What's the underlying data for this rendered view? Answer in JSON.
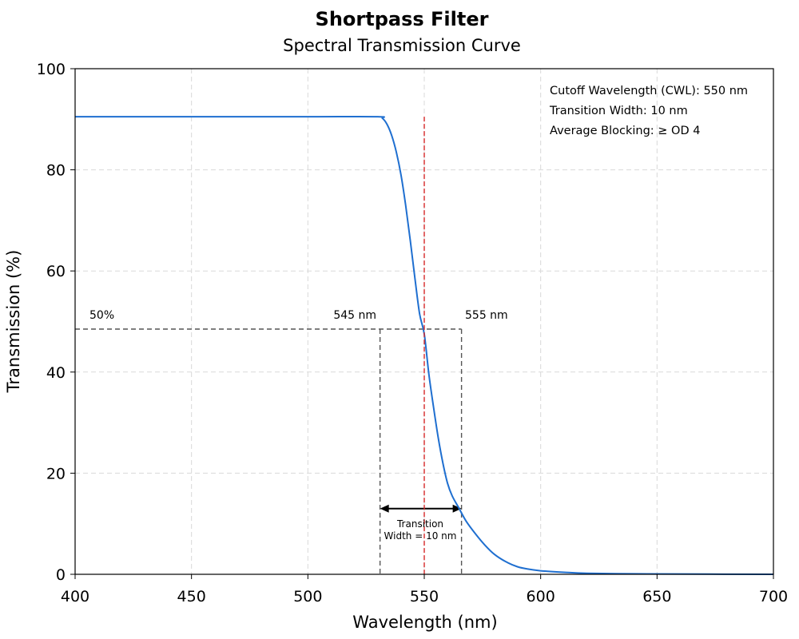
{
  "chart_data": {
    "type": "line",
    "title": "Shortpass Filter",
    "subtitle": "Spectral Transmission Curve",
    "xlabel": "Wavelength (nm)",
    "ylabel": "Transmission (%)",
    "xlim": [
      400,
      700
    ],
    "ylim": [
      0,
      100
    ],
    "xticks": [
      400,
      450,
      500,
      550,
      600,
      650,
      700
    ],
    "yticks": [
      0,
      20,
      40,
      60,
      80,
      100
    ],
    "grid": true,
    "line_color": "#1f6fd0",
    "cutoff_line_color": "#d62728",
    "series": [
      {
        "x": [
          400,
          450,
          500,
          530,
          532,
          534,
          536,
          538,
          540,
          542,
          544,
          546,
          548,
          550,
          552,
          554,
          556,
          558,
          560,
          562,
          565,
          568,
          572,
          576,
          580,
          585,
          590,
          595,
          600,
          610,
          620,
          640,
          660,
          700
        ],
        "y": [
          90.5,
          90.5,
          90.5,
          90.5,
          90.2,
          89.0,
          86.8,
          83.5,
          79.0,
          73.0,
          66.0,
          58.5,
          51.5,
          47.5,
          39.5,
          33.0,
          27.0,
          22.0,
          18.0,
          15.5,
          13.0,
          10.5,
          8.0,
          5.8,
          4.0,
          2.5,
          1.5,
          1.0,
          0.7,
          0.4,
          0.2,
          0.1,
          0.05,
          0.0
        ]
      }
    ],
    "cutoff_x": 550,
    "reference_level_y": 48.5,
    "transition_band": {
      "x_start": 531,
      "x_end": 566
    },
    "transition_arrow_y": 13,
    "annotations": {
      "level_label": "50%",
      "left_edge_label": "545 nm",
      "right_edge_label": "555 nm",
      "transition_label_line1": "Transition",
      "transition_label_line2": "Width = 10 nm"
    },
    "info_box": [
      "Cutoff Wavelength (CWL): 550 nm",
      "Transition Width: 10 nm",
      "Average Blocking: ≥ OD 4"
    ]
  }
}
